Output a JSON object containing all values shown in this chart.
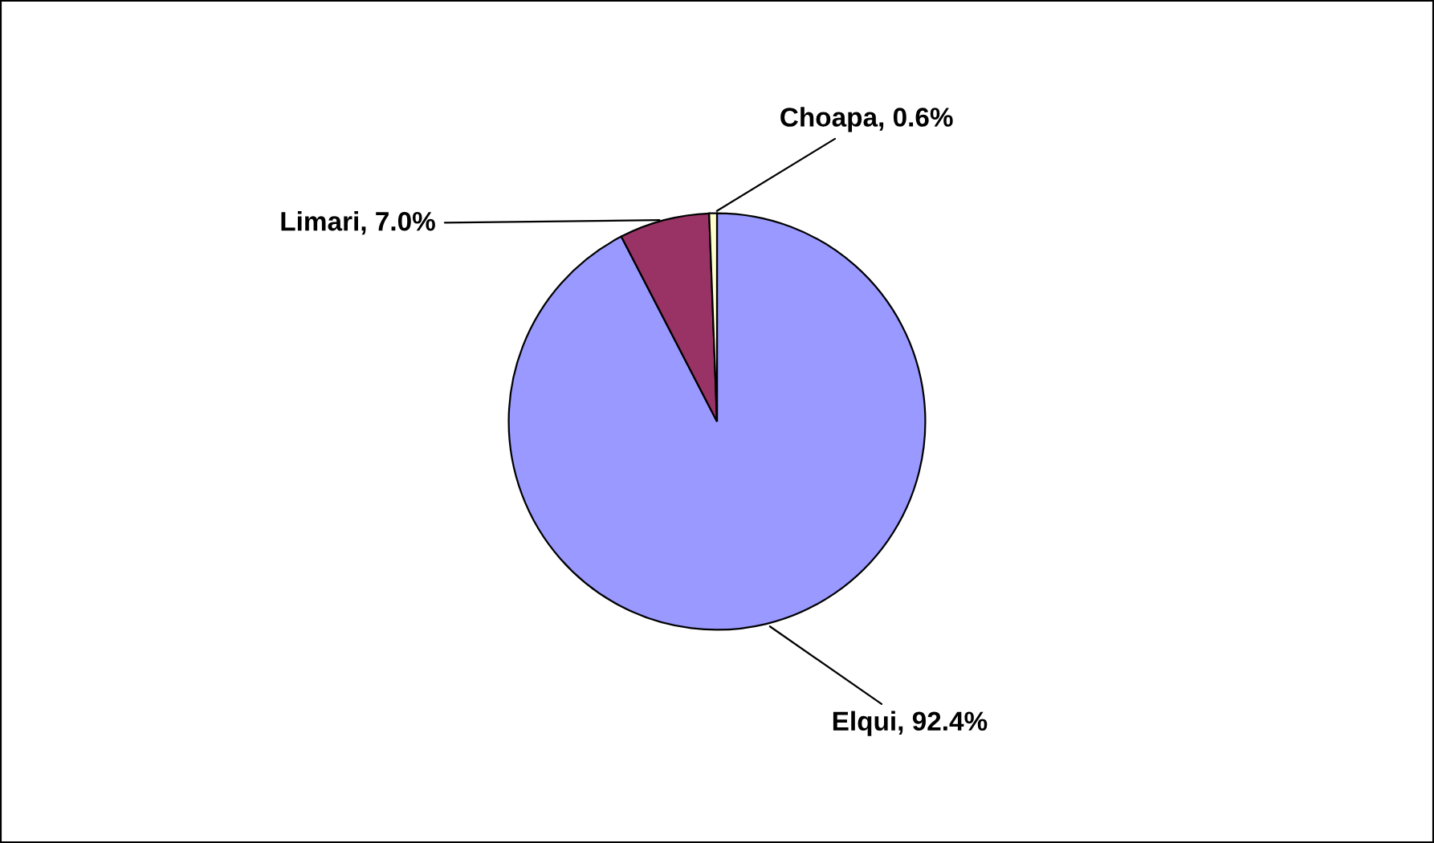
{
  "chart_data": {
    "type": "pie",
    "categories": [
      "Elqui",
      "Limari",
      "Choapa"
    ],
    "values": [
      92.4,
      7.0,
      0.6
    ],
    "value_labels": [
      "92.4%",
      "7.0%",
      "0.6%"
    ],
    "colors": [
      "#9999ff",
      "#993366",
      "#ffffcc"
    ],
    "legend": false
  }
}
